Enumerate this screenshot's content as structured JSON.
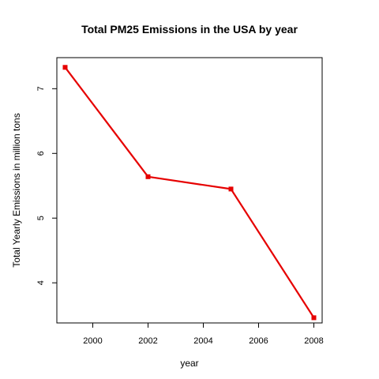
{
  "chart_data": {
    "type": "line",
    "title": "Total PM25 Emissions in the USA by year",
    "xlabel": "year",
    "ylabel": "Total Yearly Emissions in million tons",
    "x": [
      1999,
      2002,
      2005,
      2008
    ],
    "series": [
      {
        "values": [
          7.33,
          5.64,
          5.45,
          3.46
        ],
        "color": "#e60000"
      }
    ],
    "xlim": [
      1998.7,
      2008.3
    ],
    "ylim": [
      3.38,
      7.48
    ],
    "xticks": [
      2000,
      2002,
      2004,
      2006,
      2008
    ],
    "xtick_labels": [
      "2000",
      "2002",
      "2004",
      "2006",
      "2008"
    ],
    "yticks": [
      4,
      5,
      6,
      7
    ],
    "ytick_labels": [
      "4",
      "5",
      "6",
      "7"
    ],
    "grid": false,
    "legend": "none",
    "marker": "square"
  }
}
